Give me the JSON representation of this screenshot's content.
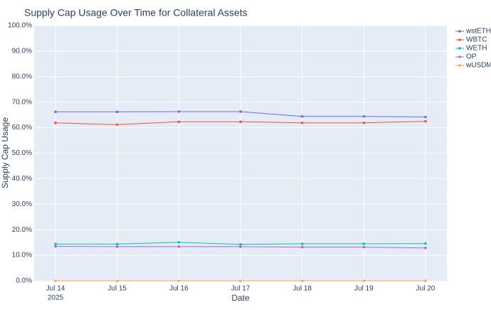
{
  "chart_data": {
    "type": "line",
    "title": "Supply Cap Usage Over Time for Collateral Assets",
    "xlabel": "Date",
    "ylabel": "Supply Cap Usage",
    "x": [
      "2025-07-14",
      "2025-07-15",
      "2025-07-16",
      "2025-07-17",
      "2025-07-18",
      "2025-07-19",
      "2025-07-20"
    ],
    "x_tick_labels": [
      "Jul 14",
      "Jul 15",
      "Jul 16",
      "Jul 17",
      "Jul 18",
      "Jul 19",
      "Jul 20"
    ],
    "x_tick_year": "2025",
    "ylim": [
      0,
      100
    ],
    "y_ticks": [
      0,
      10,
      20,
      30,
      40,
      50,
      60,
      70,
      80,
      90,
      100
    ],
    "y_tick_labels": [
      "0.0%",
      "10.0%",
      "20.0%",
      "30.0%",
      "40.0%",
      "50.0%",
      "60.0%",
      "70.0%",
      "80.0%",
      "90.0%",
      "100.0%"
    ],
    "grid": true,
    "legend_position": "top-right",
    "series": [
      {
        "name": "wstETH",
        "color": "#636efa",
        "values": [
          66.2,
          66.2,
          66.3,
          66.3,
          64.4,
          64.4,
          64.2
        ]
      },
      {
        "name": "WBTC",
        "color": "#ef553b",
        "values": [
          61.9,
          61.2,
          62.3,
          62.3,
          61.9,
          61.9,
          62.5
        ]
      },
      {
        "name": "WETH",
        "color": "#00cc96",
        "values": [
          14.4,
          14.4,
          15.1,
          14.3,
          14.5,
          14.5,
          14.6
        ]
      },
      {
        "name": "OP",
        "color": "#ab63fa",
        "values": [
          13.5,
          13.4,
          13.4,
          13.4,
          13.2,
          13.2,
          12.9
        ]
      },
      {
        "name": "wUSDM",
        "color": "#ffa15a",
        "values": [
          0,
          0,
          0,
          0,
          0,
          0,
          0
        ]
      }
    ]
  }
}
